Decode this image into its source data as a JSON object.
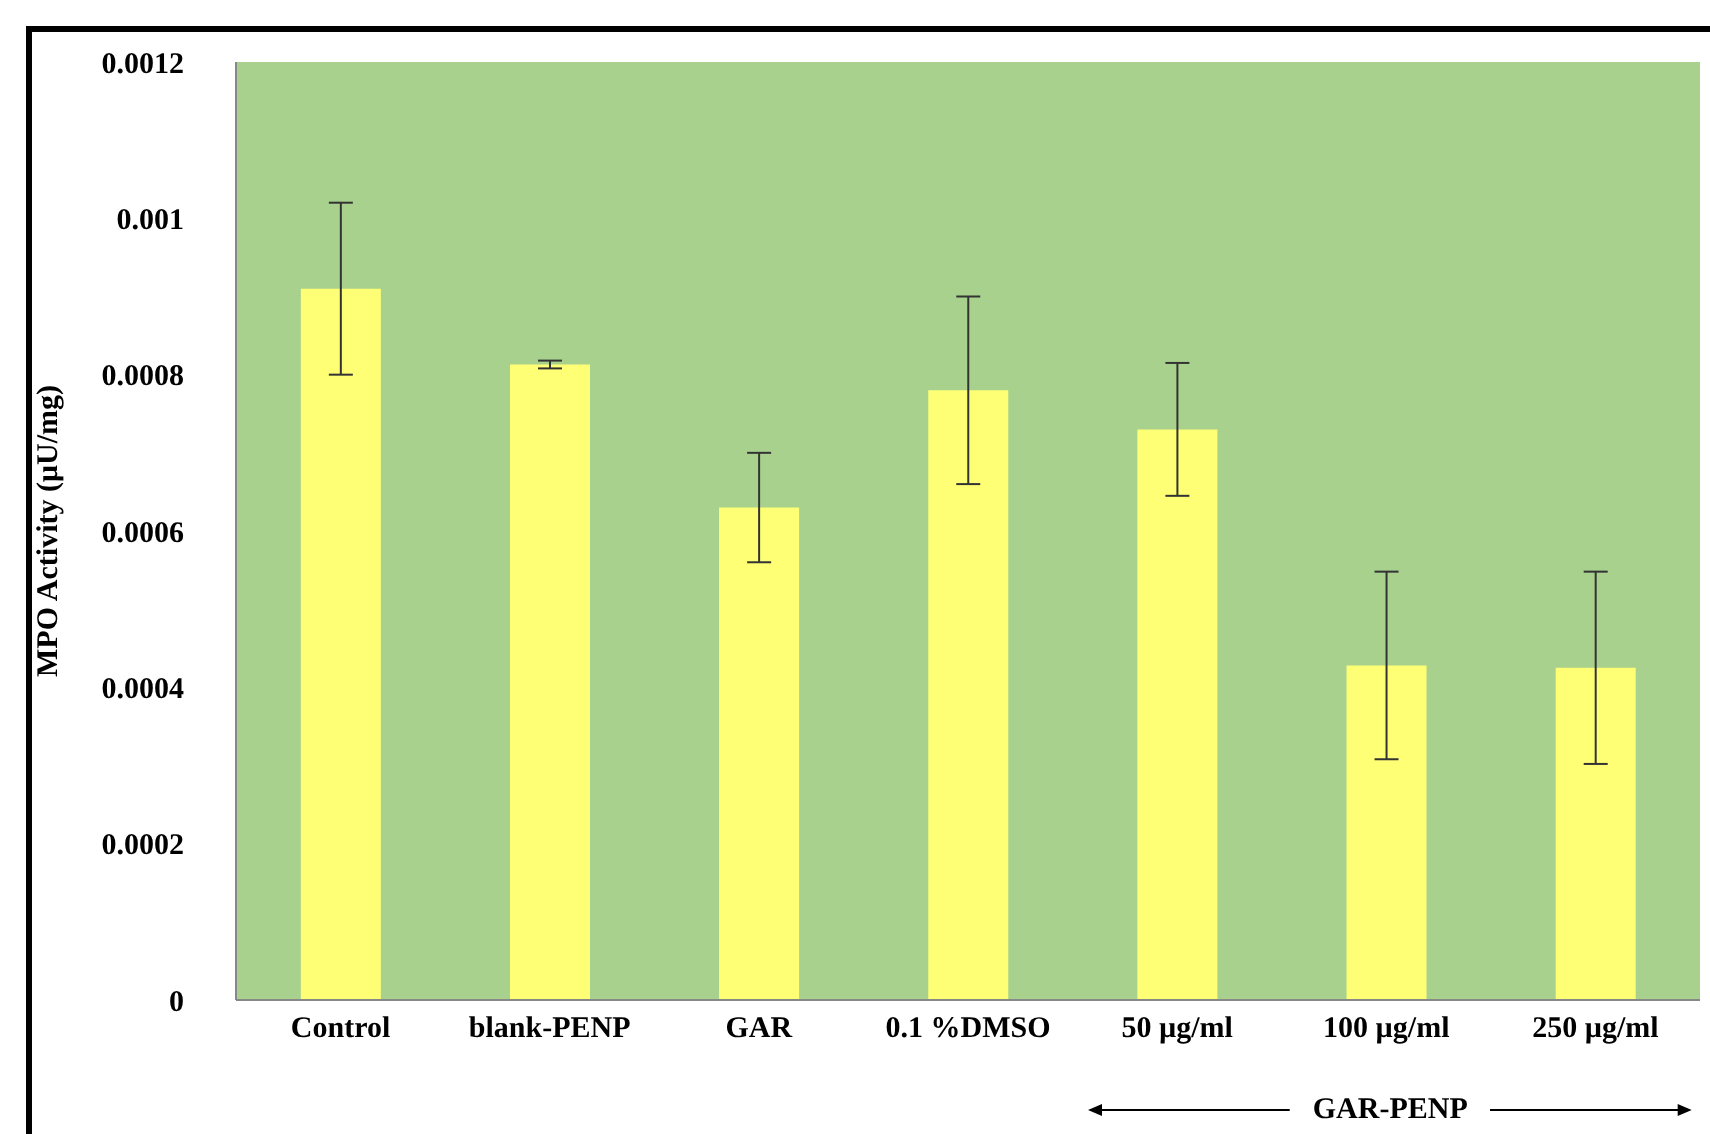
{
  "chart_data": {
    "type": "bar",
    "ylabel": "MPO Activity (μU/mg)",
    "categories": [
      "Control",
      "blank-PENP",
      "GAR",
      "0.1 %DMSO",
      "50 µg/ml",
      "100 µg/ml",
      "250 µg/ml"
    ],
    "values": [
      0.00091,
      0.000813,
      0.00063,
      0.00078,
      0.00073,
      0.000428,
      0.000425
    ],
    "errors": [
      0.00011,
      5e-06,
      7e-05,
      0.00012,
      8.5e-05,
      0.00012,
      0.000123
    ],
    "color": "#ffff75",
    "ylim": [
      0,
      0.0012
    ],
    "yticks": [
      0,
      0.0002,
      0.0004,
      0.0006,
      0.0008,
      0.001,
      0.0012
    ],
    "grid": false,
    "annotations": [
      "GAR-PENP"
    ]
  }
}
